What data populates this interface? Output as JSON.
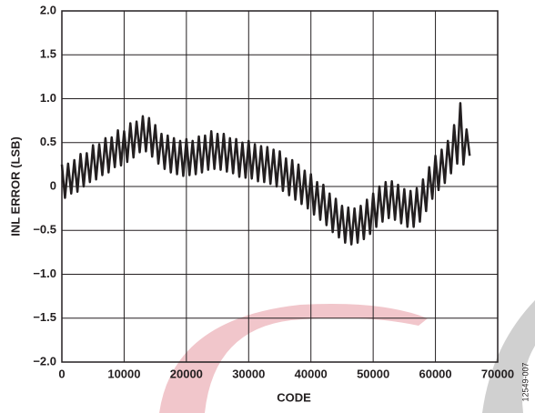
{
  "chart_data": {
    "type": "line",
    "xlabel": "CODE",
    "ylabel": "INL ERROR (LSB)",
    "figure_id": "12549-007",
    "xlim": [
      0,
      70000
    ],
    "xticks": [
      0,
      10000,
      20000,
      30000,
      40000,
      50000,
      60000,
      70000
    ],
    "ylim": [
      -2,
      2
    ],
    "yticks": [
      {
        "value": -2,
        "label": "−2.0"
      },
      {
        "value": -1.5,
        "label": "−1.5"
      },
      {
        "value": -1,
        "label": "−1.0"
      },
      {
        "value": -0.5,
        "label": "−0.5"
      },
      0,
      {
        "value": 0.5,
        "label": "0.5"
      },
      {
        "value": 1,
        "label": "1.0"
      },
      {
        "value": 1.5,
        "label": "1.5"
      },
      {
        "value": 2,
        "label": "2.0"
      }
    ],
    "grid": true,
    "series": [
      {
        "color": "#231f20",
        "x": [
          0,
          500,
          1000,
          1500,
          2000,
          2500,
          3000,
          3500,
          4000,
          4500,
          5000,
          5500,
          6000,
          6500,
          7000,
          7500,
          8000,
          8500,
          9000,
          9500,
          10000,
          10500,
          11000,
          11500,
          12000,
          12500,
          13000,
          13500,
          14000,
          14500,
          15000,
          15500,
          16000,
          16500,
          17000,
          17500,
          18000,
          18500,
          19000,
          19500,
          20000,
          20500,
          21000,
          21500,
          22000,
          22500,
          23000,
          23500,
          24000,
          24500,
          25000,
          25500,
          26000,
          26500,
          27000,
          27500,
          28000,
          28500,
          29000,
          29500,
          30000,
          30500,
          31000,
          31500,
          32000,
          32500,
          33000,
          33500,
          34000,
          34500,
          35000,
          35500,
          36000,
          36500,
          37000,
          37500,
          38000,
          38500,
          39000,
          39500,
          40000,
          40500,
          41000,
          41500,
          42000,
          42500,
          43000,
          43500,
          44000,
          44500,
          45000,
          45500,
          46000,
          46500,
          47000,
          47500,
          48000,
          48500,
          49000,
          49500,
          50000,
          50500,
          51000,
          51500,
          52000,
          52500,
          53000,
          53500,
          54000,
          54500,
          55000,
          55500,
          56000,
          56500,
          57000,
          57500,
          58000,
          58500,
          59000,
          59500,
          60000,
          60500,
          61000,
          61500,
          62000,
          62500,
          63000,
          63500,
          64000,
          64500,
          65000,
          65500
        ],
        "values": [
          0.25,
          -0.13,
          0.26,
          -0.08,
          0.3,
          -0.06,
          0.37,
          0.0,
          0.38,
          0.05,
          0.47,
          0.08,
          0.48,
          0.13,
          0.55,
          0.16,
          0.56,
          0.22,
          0.64,
          0.24,
          0.63,
          0.28,
          0.72,
          0.33,
          0.74,
          0.39,
          0.8,
          0.4,
          0.78,
          0.34,
          0.7,
          0.26,
          0.6,
          0.2,
          0.58,
          0.16,
          0.55,
          0.14,
          0.52,
          0.12,
          0.54,
          0.13,
          0.52,
          0.14,
          0.57,
          0.16,
          0.58,
          0.19,
          0.63,
          0.2,
          0.6,
          0.19,
          0.6,
          0.17,
          0.55,
          0.15,
          0.54,
          0.11,
          0.5,
          0.1,
          0.52,
          0.09,
          0.48,
          0.06,
          0.46,
          0.05,
          0.45,
          0.03,
          0.42,
          0.0,
          0.4,
          -0.05,
          0.32,
          -0.1,
          0.3,
          -0.15,
          0.25,
          -0.2,
          0.18,
          -0.25,
          0.14,
          -0.32,
          0.05,
          -0.38,
          0.02,
          -0.44,
          -0.08,
          -0.52,
          -0.14,
          -0.58,
          -0.22,
          -0.64,
          -0.24,
          -0.66,
          -0.25,
          -0.64,
          -0.22,
          -0.6,
          -0.15,
          -0.54,
          -0.08,
          -0.46,
          0.0,
          -0.4,
          0.05,
          -0.36,
          0.06,
          -0.38,
          0.02,
          -0.42,
          -0.03,
          -0.46,
          -0.05,
          -0.46,
          -0.02,
          -0.4,
          0.08,
          -0.28,
          0.22,
          -0.14,
          0.35,
          -0.04,
          0.42,
          0.04,
          0.52,
          0.15,
          0.7,
          0.26,
          0.95,
          0.25,
          0.65,
          0.35
        ]
      }
    ]
  }
}
